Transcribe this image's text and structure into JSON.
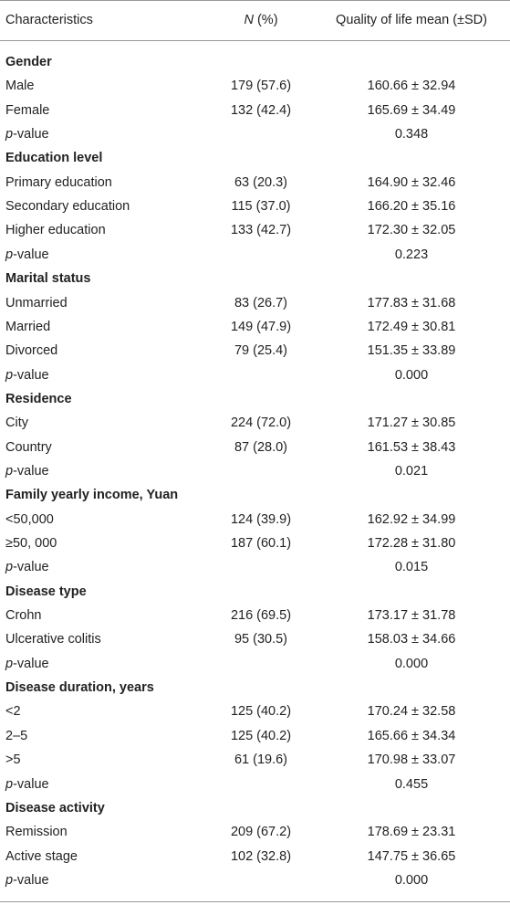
{
  "header": {
    "columns": [
      [
        "Characteristics"
      ],
      [
        "N",
        " (%)"
      ],
      [
        "Quality of life mean (±SD)"
      ]
    ]
  },
  "p_value_label": [
    "p",
    "-value"
  ],
  "groups": [
    {
      "title": "Gender",
      "rows": [
        [
          "Male",
          "179 (57.6)",
          "160.66 ± 32.94"
        ],
        [
          "Female",
          "132 (42.4)",
          "165.69 ± 34.49"
        ]
      ],
      "p_value": "0.348"
    },
    {
      "title": "Education level",
      "rows": [
        [
          "Primary education",
          "63 (20.3)",
          "164.90 ± 32.46"
        ],
        [
          "Secondary education",
          "115 (37.0)",
          "166.20 ± 35.16"
        ],
        [
          "Higher education",
          "133 (42.7)",
          "172.30 ± 32.05"
        ]
      ],
      "p_value": "0.223"
    },
    {
      "title": "Marital status",
      "rows": [
        [
          "Unmarried",
          "83 (26.7)",
          "177.83 ± 31.68"
        ],
        [
          "Married",
          "149 (47.9)",
          "172.49 ± 30.81"
        ],
        [
          "Divorced",
          "79 (25.4)",
          "151.35 ± 33.89"
        ]
      ],
      "p_value": "0.000"
    },
    {
      "title": "Residence",
      "rows": [
        [
          "City",
          "224 (72.0)",
          "171.27 ± 30.85"
        ],
        [
          "Country",
          "87 (28.0)",
          "161.53 ± 38.43"
        ]
      ],
      "p_value": "0.021"
    },
    {
      "title": "Family yearly income, Yuan",
      "rows": [
        [
          "<50,000",
          "124 (39.9)",
          "162.92 ± 34.99"
        ],
        [
          "≥50, 000",
          "187 (60.1)",
          "172.28 ± 31.80"
        ]
      ],
      "p_value": "0.015"
    },
    {
      "title": "Disease type",
      "rows": [
        [
          "Crohn",
          "216 (69.5)",
          "173.17 ± 31.78"
        ],
        [
          "Ulcerative colitis",
          "95 (30.5)",
          "158.03 ± 34.66"
        ]
      ],
      "p_value": "0.000"
    },
    {
      "title": "Disease duration, years",
      "rows": [
        [
          "<2",
          "125 (40.2)",
          "170.24 ± 32.58"
        ],
        [
          "2–5",
          "125 (40.2)",
          "165.66 ± 34.34"
        ],
        [
          ">5",
          "61 (19.6)",
          "170.98 ± 33.07"
        ]
      ],
      "p_value": "0.455"
    },
    {
      "title": "Disease activity",
      "rows": [
        [
          "Remission",
          "209 (67.2)",
          "178.69 ± 23.31"
        ],
        [
          "Active stage",
          "102 (32.8)",
          "147.75 ± 36.65"
        ]
      ],
      "p_value": "0.000"
    }
  ]
}
